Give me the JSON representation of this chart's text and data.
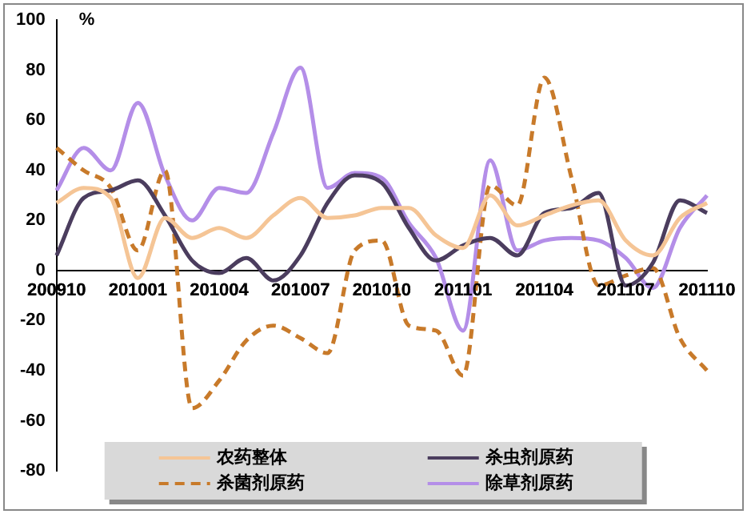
{
  "chart_data": {
    "type": "line",
    "ylabel": "%",
    "categories": [
      "200910",
      null,
      null,
      "201001",
      null,
      null,
      "201004",
      null,
      null,
      "201007",
      null,
      null,
      "201010",
      null,
      null,
      "201101",
      null,
      null,
      "201104",
      null,
      null,
      "201107",
      null,
      null,
      "201110"
    ],
    "series": [
      {
        "name": "农药整体",
        "color": "#f5c596",
        "values": [
          27,
          33,
          29,
          -3,
          21,
          13,
          17,
          13,
          22,
          29,
          21,
          22,
          25,
          25,
          14,
          9,
          30,
          18,
          22,
          26,
          28,
          12,
          6,
          21,
          27
        ]
      },
      {
        "name": "杀虫剂原药",
        "color": "#4b3d5e",
        "values": [
          6,
          29,
          32,
          36,
          22,
          4,
          -1,
          5,
          -4,
          6,
          27,
          38,
          35,
          17,
          4,
          10,
          13,
          6,
          23,
          25,
          31,
          -6,
          3,
          28,
          23
        ]
      },
      {
        "name": "杀菌剂原药",
        "color": "#c87a2a",
        "line_style": "dashed",
        "values": [
          49,
          40,
          33,
          8,
          40,
          -55,
          -44,
          -28,
          -22,
          -27,
          -33,
          8,
          12,
          -22,
          -24,
          -42,
          34,
          26,
          77,
          37,
          -6,
          -2,
          1,
          -27,
          -40
        ]
      },
      {
        "name": "除草剂原药",
        "color": "#b48ee8",
        "values": [
          32,
          49,
          40,
          67,
          38,
          20,
          33,
          31,
          55,
          81,
          33,
          39,
          37,
          19,
          5,
          -24,
          44,
          8,
          12,
          13,
          12,
          5,
          -7,
          17,
          30
        ]
      }
    ],
    "ylim": [
      -80,
      100
    ],
    "yticks": [
      -80,
      -60,
      -40,
      -20,
      0,
      20,
      40,
      60,
      80,
      100
    ],
    "grid": false,
    "legend": "bottom",
    "marker": "none",
    "line_style": "solid"
  }
}
